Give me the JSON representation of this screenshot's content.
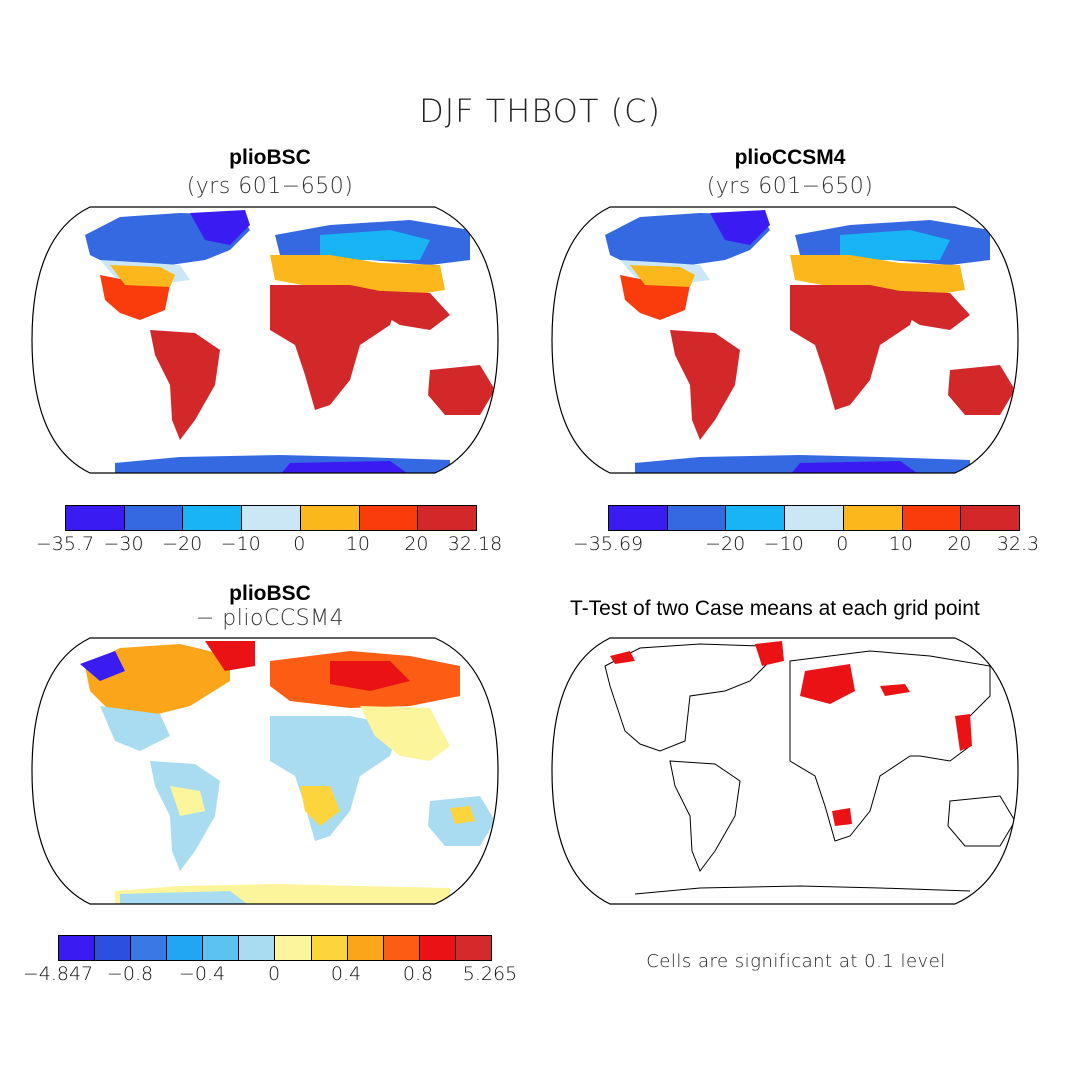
{
  "main_title": "DJF THBOT (C)",
  "panels": {
    "top_left": {
      "title": "plioBSC",
      "subtitle": "(yrs 601−650)"
    },
    "top_right": {
      "title": "plioCCSM4",
      "subtitle": "(yrs 601−650)"
    },
    "bottom_left": {
      "title": "plioBSC",
      "subtitle": "− plioCCSM4"
    },
    "bottom_right": {
      "title": "T-Test of two Case means at each grid point",
      "note": "Cells are significant at 0.1 level"
    }
  },
  "colorbars": {
    "top_left": {
      "colors": [
        "#3a1cf2",
        "#3469e1",
        "#19b4f3",
        "#cbe7f5",
        "#fbb71b",
        "#fa3b0b",
        "#d3282a"
      ],
      "labels": [
        "−35.7",
        "−30",
        "−20",
        "−10",
        "0",
        "10",
        "20",
        "32.18"
      ]
    },
    "top_right": {
      "colors": [
        "#3a1cf2",
        "#3469e1",
        "#19b4f3",
        "#cbe7f5",
        "#fbb71b",
        "#fa3b0b",
        "#d3282a"
      ],
      "labels": [
        "−35.69",
        "−20",
        "−10",
        "0",
        "10",
        "20",
        "32.3"
      ]
    },
    "bottom_left": {
      "colors": [
        "#3a1cf2",
        "#2d4fe0",
        "#3a78e6",
        "#20a6f2",
        "#5cc3f0",
        "#a9dcf1",
        "#fdf59b",
        "#fdd43c",
        "#fba51b",
        "#fa5d13",
        "#ea1214",
        "#d52a2b"
      ],
      "labels": [
        "−4.847",
        "−0.8",
        "−0.4",
        "0",
        "0.4",
        "0.8",
        "5.265"
      ]
    }
  },
  "chart_data": [
    {
      "type": "map",
      "title": "plioBSC",
      "subtitle": "(yrs 601−650)",
      "projection": "Robinson",
      "variable": "DJF THBOT (C)",
      "colorbar_min": -35.7,
      "colorbar_max": 32.18,
      "levels": [
        -30,
        -20,
        -10,
        0,
        10,
        20
      ]
    },
    {
      "type": "map",
      "title": "plioCCSM4",
      "subtitle": "(yrs 601−650)",
      "projection": "Robinson",
      "variable": "DJF THBOT (C)",
      "colorbar_min": -35.69,
      "colorbar_max": 32.3,
      "levels": [
        -20,
        -10,
        0,
        10,
        20
      ]
    },
    {
      "type": "map",
      "title": "plioBSC − plioCCSM4",
      "projection": "Robinson",
      "variable": "DJF THBOT (C) difference",
      "colorbar_min": -4.847,
      "colorbar_max": 5.265,
      "levels": [
        -0.8,
        -0.4,
        0,
        0.4,
        0.8
      ]
    },
    {
      "type": "map",
      "title": "T-Test of two Case means at each grid point",
      "projection": "Robinson",
      "significance_level": 0.1
    }
  ]
}
